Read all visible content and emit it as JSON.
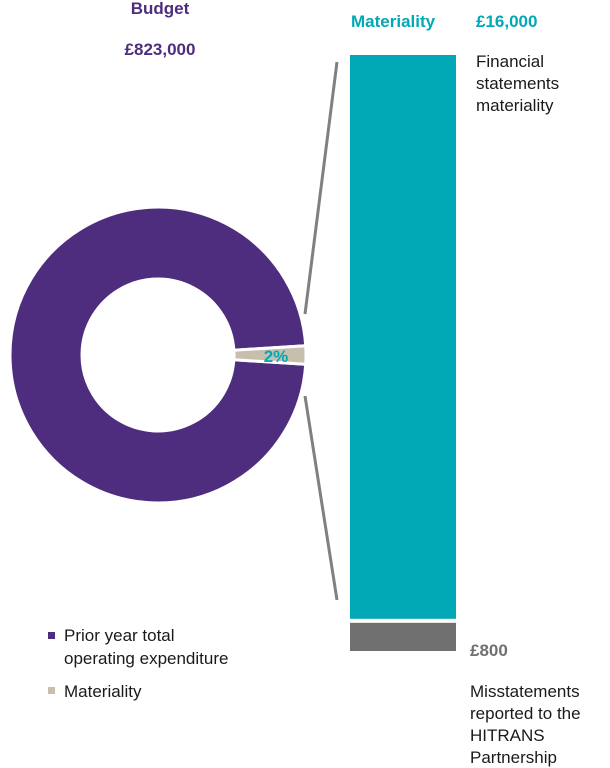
{
  "colors": {
    "purple": "#4e2d7f",
    "beige": "#c7bfae",
    "teal": "#00a9b5",
    "grey": "#707070",
    "connector": "#808080",
    "text": "#1a1a1a"
  },
  "budget": {
    "title": "Budget",
    "amount": "£823,000"
  },
  "materiality_header": {
    "label": "Materiality",
    "amount": "£16,000"
  },
  "financial_note": [
    "Financial",
    "statements",
    "materiality"
  ],
  "misstatement": {
    "amount": "£800",
    "lines": [
      "Misstatements",
      "reported to the",
      "HITRANS",
      "Partnership"
    ]
  },
  "legend": [
    {
      "label_lines": [
        "Prior year total",
        "operating expenditure"
      ],
      "color": "#4e2d7f"
    },
    {
      "label_lines": [
        "Materiality"
      ],
      "color": "#c7bfae"
    }
  ],
  "chart_data": [
    {
      "type": "pie",
      "variant": "donut",
      "slices": [
        {
          "name": "Prior year total operating expenditure",
          "value": 98,
          "color": "#4e2d7f"
        },
        {
          "name": "Materiality",
          "value": 2,
          "color": "#c7bfae",
          "label": "2%"
        }
      ],
      "legend_position": "bottom-left"
    },
    {
      "type": "bar",
      "orientation": "vertical-stacked",
      "segments": [
        {
          "name": "Materiality",
          "value": 16000,
          "label": "£16,000",
          "color": "#00a9b5"
        },
        {
          "name": "Misstatements reported",
          "value": 800,
          "label": "£800",
          "color": "#707070"
        }
      ]
    }
  ]
}
